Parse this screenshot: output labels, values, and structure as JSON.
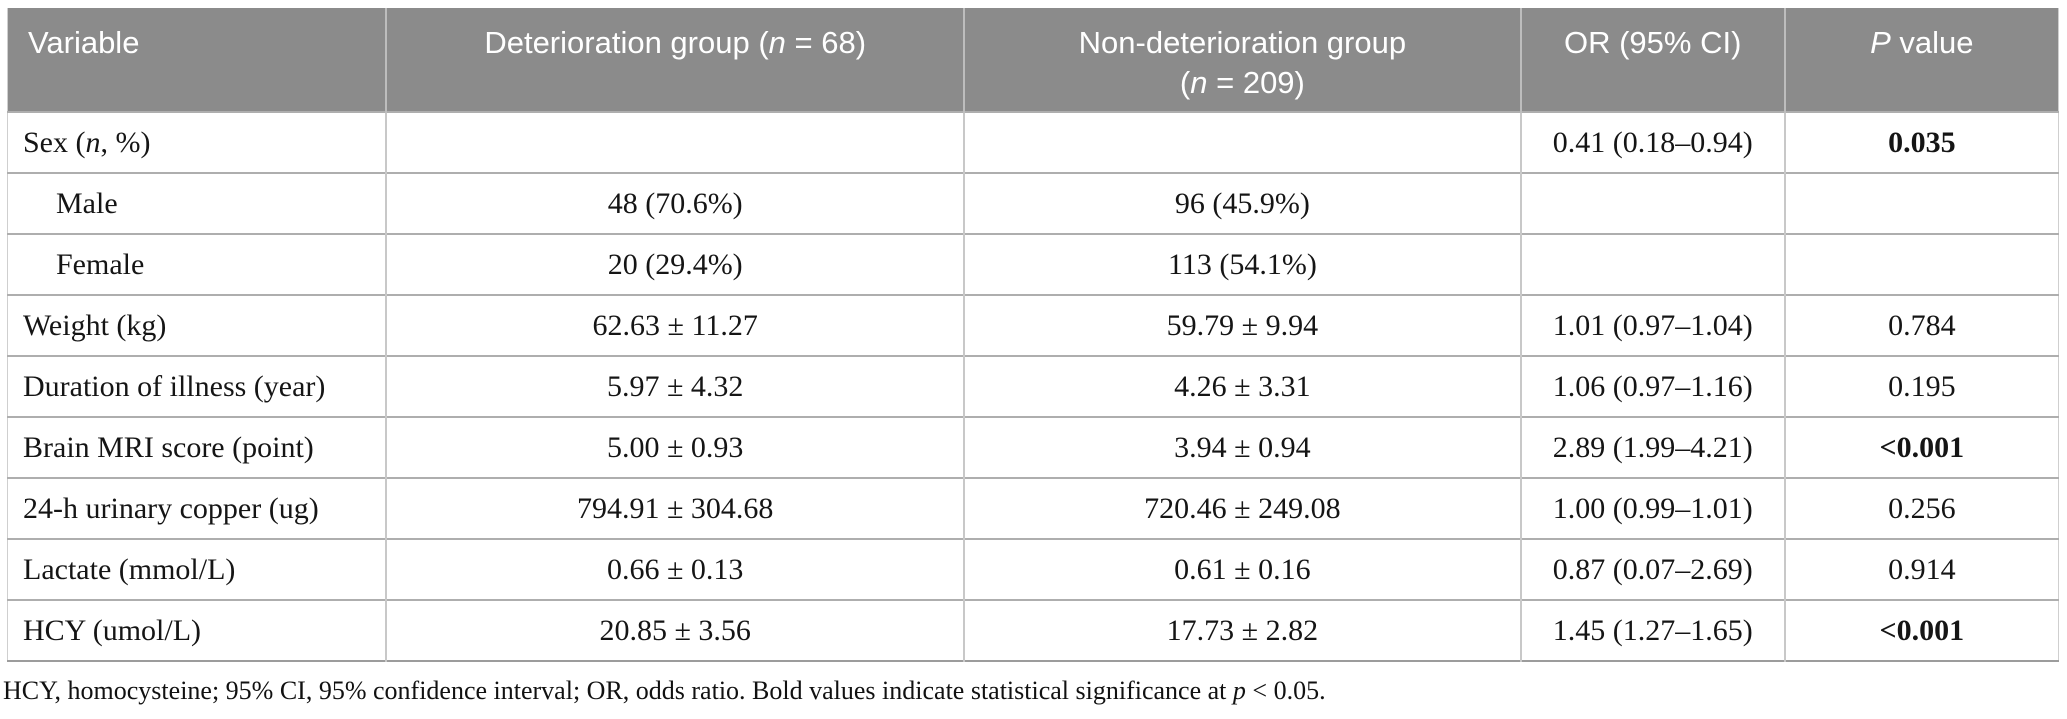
{
  "colors": {
    "header_bg": "#8b8b8b",
    "header_text": "#ffffff",
    "row_line": "#aeaeae",
    "column_line": "#c8c8c8",
    "body_text": "#151515"
  },
  "table": {
    "header": {
      "variable": [
        {
          "t": "Variable"
        }
      ],
      "det_group": [
        {
          "t": "Deterioration group ("
        },
        {
          "t": "n",
          "i": true
        },
        {
          "t": " = 68)"
        }
      ],
      "nondet_group_line1": [
        {
          "t": "Non-deterioration group"
        }
      ],
      "nondet_group_line2": [
        {
          "t": "("
        },
        {
          "t": "n",
          "i": true
        },
        {
          "t": " = 209)"
        }
      ],
      "or_ci": [
        {
          "t": "OR (95% CI)"
        }
      ],
      "p_value": [
        {
          "t": "P",
          "i": true
        },
        {
          "t": " value"
        }
      ]
    },
    "rows": [
      {
        "variable": [
          {
            "t": "Sex ("
          },
          {
            "t": "n",
            "i": true
          },
          {
            "t": ", %)"
          }
        ],
        "indent": false,
        "det": "",
        "nondet": "",
        "or": "0.41 (0.18–0.94)",
        "p": "0.035",
        "p_bold": true
      },
      {
        "variable": [
          {
            "t": "Male"
          }
        ],
        "indent": true,
        "det": "48 (70.6%)",
        "nondet": "96 (45.9%)",
        "or": "",
        "p": "",
        "p_bold": false
      },
      {
        "variable": [
          {
            "t": "Female"
          }
        ],
        "indent": true,
        "det": "20 (29.4%)",
        "nondet": "113 (54.1%)",
        "or": "",
        "p": "",
        "p_bold": false
      },
      {
        "variable": [
          {
            "t": "Weight (kg)"
          }
        ],
        "indent": false,
        "det": "62.63 ± 11.27",
        "nondet": "59.79 ± 9.94",
        "or": "1.01 (0.97–1.04)",
        "p": "0.784",
        "p_bold": false
      },
      {
        "variable": [
          {
            "t": "Duration of illness (year)"
          }
        ],
        "indent": false,
        "det": "5.97 ± 4.32",
        "nondet": "4.26 ± 3.31",
        "or": "1.06 (0.97–1.16)",
        "p": "0.195",
        "p_bold": false
      },
      {
        "variable": [
          {
            "t": "Brain MRI score (point)"
          }
        ],
        "indent": false,
        "det": "5.00 ± 0.93",
        "nondet": "3.94 ± 0.94",
        "or": "2.89 (1.99–4.21)",
        "p": "<0.001",
        "p_bold": true
      },
      {
        "variable": [
          {
            "t": "24-h urinary copper (ug)"
          }
        ],
        "indent": false,
        "det": "794.91 ± 304.68",
        "nondet": "720.46 ± 249.08",
        "or": "1.00 (0.99–1.01)",
        "p": "0.256",
        "p_bold": false
      },
      {
        "variable": [
          {
            "t": "Lactate (mmol/L)"
          }
        ],
        "indent": false,
        "det": "0.66 ± 0.13",
        "nondet": "0.61 ± 0.16",
        "or": "0.87 (0.07–2.69)",
        "p": "0.914",
        "p_bold": false
      },
      {
        "variable": [
          {
            "t": "HCY (umol/L)"
          }
        ],
        "indent": false,
        "det": "20.85 ± 3.56",
        "nondet": "17.73 ± 2.82",
        "or": "1.45 (1.27–1.65)",
        "p": "<0.001",
        "p_bold": true
      }
    ]
  },
  "footnote": [
    {
      "t": "HCY, homocysteine; 95% CI, 95% confidence interval; OR, odds ratio. Bold values indicate statistical significance at "
    },
    {
      "t": "p",
      "i": true
    },
    {
      "t": " < 0.05."
    }
  ]
}
